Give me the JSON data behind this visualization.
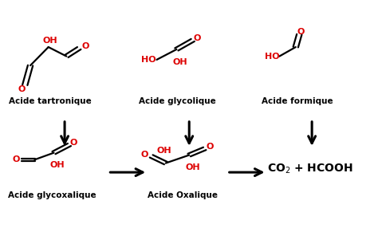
{
  "background_color": "#ffffff",
  "fig_width": 4.74,
  "fig_height": 2.91,
  "dpi": 100,
  "red": "#dd0000",
  "black": "#000000",
  "arrows_vertical": [
    [
      0.135,
      0.485,
      0.135,
      0.36
    ],
    [
      0.48,
      0.485,
      0.48,
      0.36
    ],
    [
      0.82,
      0.485,
      0.82,
      0.36
    ]
  ],
  "arrows_horizontal": [
    [
      0.255,
      0.255,
      0.365,
      0.255
    ],
    [
      0.585,
      0.255,
      0.695,
      0.255
    ]
  ]
}
